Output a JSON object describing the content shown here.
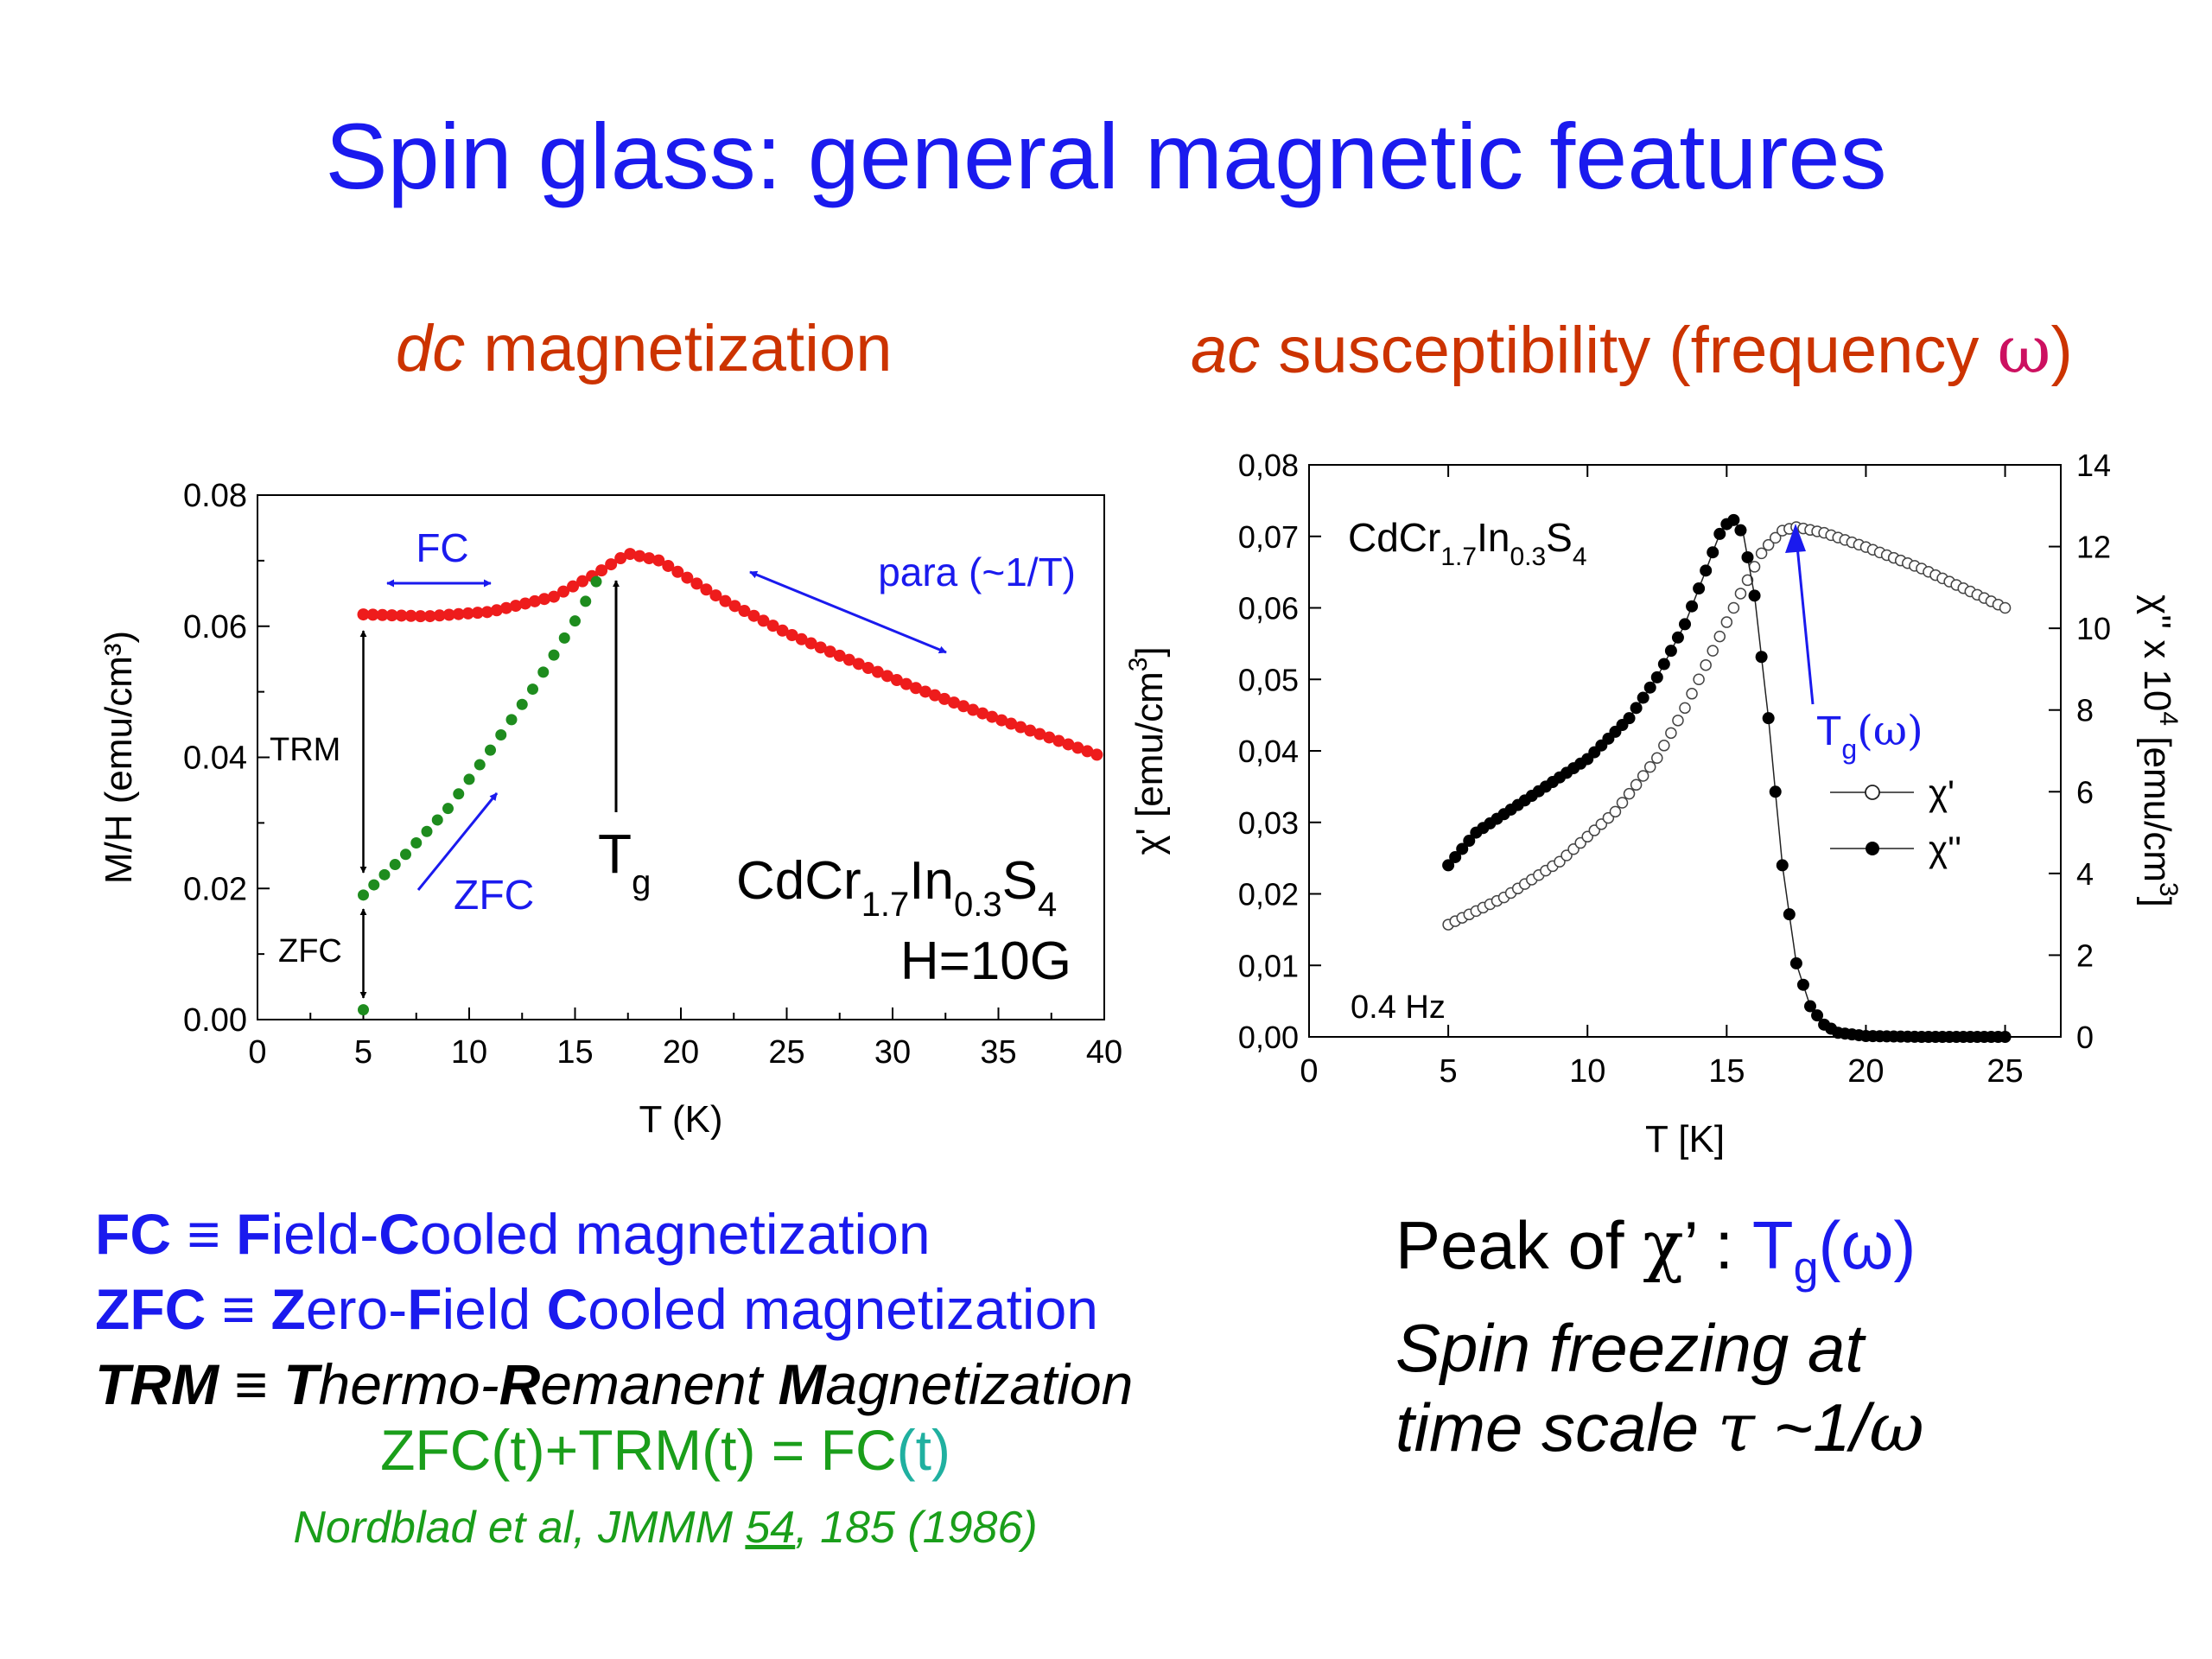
{
  "slide": {
    "title": "Spin glass: general magnetic features",
    "left_sub_it": "dc",
    "left_sub_rest": " magnetization",
    "right_sub_it": "ac",
    "right_sub_rest": " susceptibility (frequency ",
    "right_sub_omega": "ω",
    "right_sub_close": ")"
  },
  "defs": [
    {
      "abbr": "FC",
      "eq": " ≡ ",
      "parts": [
        [
          "F",
          true
        ],
        [
          "ield-",
          false
        ],
        [
          "C",
          true
        ],
        [
          "ooled magnetization",
          false
        ]
      ]
    },
    {
      "abbr": "ZFC",
      "eq": " ≡ ",
      "parts": [
        [
          "Z",
          true
        ],
        [
          "ero-",
          false
        ],
        [
          "F",
          true
        ],
        [
          "ield ",
          false
        ],
        [
          "C",
          true
        ],
        [
          "ooled magnetization",
          false
        ]
      ]
    },
    {
      "abbr": "TRM",
      "eq": " ≡ ",
      "parts": [
        [
          "T",
          true
        ],
        [
          "hermo-",
          false
        ],
        [
          "R",
          true
        ],
        [
          "emanent ",
          false
        ],
        [
          "M",
          true
        ],
        [
          "agnetization",
          false
        ]
      ]
    }
  ],
  "equation": {
    "main": "ZFC(t)+TRM(t) = FC",
    "tail": "(t)"
  },
  "reference": {
    "pre": "Nordblad et al, JMMM ",
    "vol": "54",
    "post": ", 185 (1986)"
  },
  "peak": {
    "l1_a": "Peak of ",
    "chi": "χ",
    "l1_b": "’ : ",
    "tg_T": "T",
    "tg_sub": "g",
    "tg_omega": "(ω)",
    "l2": "Spin freezing at",
    "l3_a": "time scale ",
    "tau": "τ",
    "l3_b": " ~1/",
    "omega": "ω"
  },
  "colors": {
    "title": "#1a1aee",
    "subtitle": "#cc3300",
    "fc": "#ee1c1c",
    "zfc": "#1e8c1e",
    "arrow": "#1a1aee",
    "equation": "#1a9e1a"
  },
  "chart_data": [
    {
      "type": "scatter",
      "xlabel": "T (K)",
      "ylabel": "M/H (emu/cm³)",
      "xlim": [
        0,
        40
      ],
      "ylim": [
        0,
        0.08
      ],
      "xticks": [
        0,
        5,
        10,
        15,
        20,
        25,
        30,
        35,
        40
      ],
      "yticks": [
        0.0,
        0.02,
        0.04,
        0.06,
        0.08
      ],
      "tick_labels_x": [
        "0",
        "5",
        "10",
        "15",
        "20",
        "25",
        "30",
        "35",
        "40"
      ],
      "tick_labels_y": [
        "0.00",
        "0.02",
        "0.04",
        "0.06",
        "0.08"
      ],
      "series": [
        {
          "name": "FC",
          "color": "#ee1c1c",
          "x": [
            5,
            8,
            11,
            14,
            16,
            17.5,
            19,
            22,
            25,
            28,
            31,
            34,
            37,
            40
          ],
          "y": [
            0.0618,
            0.0615,
            0.0622,
            0.0645,
            0.068,
            0.0711,
            0.07,
            0.064,
            0.059,
            0.0548,
            0.0507,
            0.047,
            0.0435,
            0.04
          ]
        },
        {
          "name": "ZFC",
          "color": "#1e8c1e",
          "x": [
            5,
            7,
            9,
            11,
            13,
            15,
            16
          ],
          "y": [
            0.019,
            0.0252,
            0.0322,
            0.0411,
            0.0504,
            0.0608,
            0.0668
          ]
        },
        {
          "name": "ZFC start",
          "color": "#1e8c1e",
          "x": [
            5
          ],
          "y": [
            0.0015
          ]
        }
      ],
      "annotations": {
        "fc": "FC",
        "zfc": "ZFC",
        "trm": "TRM",
        "zfc_small": "ZFC",
        "para": "para (~1/T)",
        "tg_T": "T",
        "tg_sub": "g",
        "sample_a": "CdCr",
        "sample_s1": "1.7",
        "sample_b": "In",
        "sample_s2": "0.3",
        "sample_c": "S",
        "sample_s3": "4",
        "field": "H=10G"
      }
    },
    {
      "type": "scatter",
      "xlabel": "T [K]",
      "ylabel_a": "χ' [emu/cm",
      "ylabel_sup": "3",
      "ylabel_b": "]",
      "ylabel2_a": "χ'' x 10",
      "ylabel2_sup": "4",
      "ylabel2_b": " [emu/cm",
      "ylabel2_sup2": "3",
      "ylabel2_c": "]",
      "xlim": [
        0,
        27
      ],
      "ylim": [
        0,
        0.08
      ],
      "y2lim": [
        0,
        14
      ],
      "xticks": [
        0,
        5,
        10,
        15,
        20,
        25
      ],
      "yticks": [
        0,
        0.01,
        0.02,
        0.03,
        0.04,
        0.05,
        0.06,
        0.07,
        0.08
      ],
      "y2ticks": [
        0,
        2,
        4,
        6,
        8,
        10,
        12,
        14
      ],
      "tick_labels_x": [
        "0",
        "5",
        "10",
        "15",
        "20",
        "25"
      ],
      "tick_labels_y": [
        "0,00",
        "0,01",
        "0,02",
        "0,03",
        "0,04",
        "0,05",
        "0,06",
        "0,07",
        "0,08"
      ],
      "tick_labels_y2": [
        "0",
        "2",
        "4",
        "6",
        "8",
        "10",
        "12",
        "14"
      ],
      "series": [
        {
          "name": "χ'",
          "marker": "open",
          "axis": "left",
          "x": [
            5,
            7,
            9,
            11,
            12.5,
            13.5,
            14.5,
            15.5,
            16.3,
            17,
            17.5,
            18.5,
            20,
            22,
            25
          ],
          "y": [
            0.0157,
            0.0195,
            0.0245,
            0.0315,
            0.039,
            0.046,
            0.054,
            0.062,
            0.068,
            0.0708,
            0.0713,
            0.0705,
            0.0685,
            0.0655,
            0.06
          ]
        },
        {
          "name": "χ''",
          "marker": "filled",
          "axis": "right",
          "x": [
            5,
            6,
            8,
            10,
            11.5,
            12.5,
            13.5,
            14.3,
            14.8,
            15.2,
            15.6,
            16,
            16.5,
            17,
            17.5,
            18,
            18.5,
            19,
            20,
            22,
            25
          ],
          "y": [
            4.2,
            5.0,
            5.9,
            6.8,
            7.8,
            8.8,
            10.1,
            11.5,
            12.4,
            12.7,
            12.3,
            10.8,
            7.8,
            4.2,
            1.8,
            0.75,
            0.3,
            0.1,
            0.02,
            0.0,
            0.0
          ]
        }
      ],
      "annotations": {
        "sample_a": "CdCr",
        "sample_s1": "1.7",
        "sample_b": "In",
        "sample_s2": "0.3",
        "sample_c": "S",
        "sample_s3": "4",
        "freq": "0.4 Hz",
        "tg_T": "T",
        "tg_sub": "g",
        "tg_omega": "(ω)",
        "legend_chi1": "χ'",
        "legend_chi2": "χ''"
      }
    }
  ]
}
